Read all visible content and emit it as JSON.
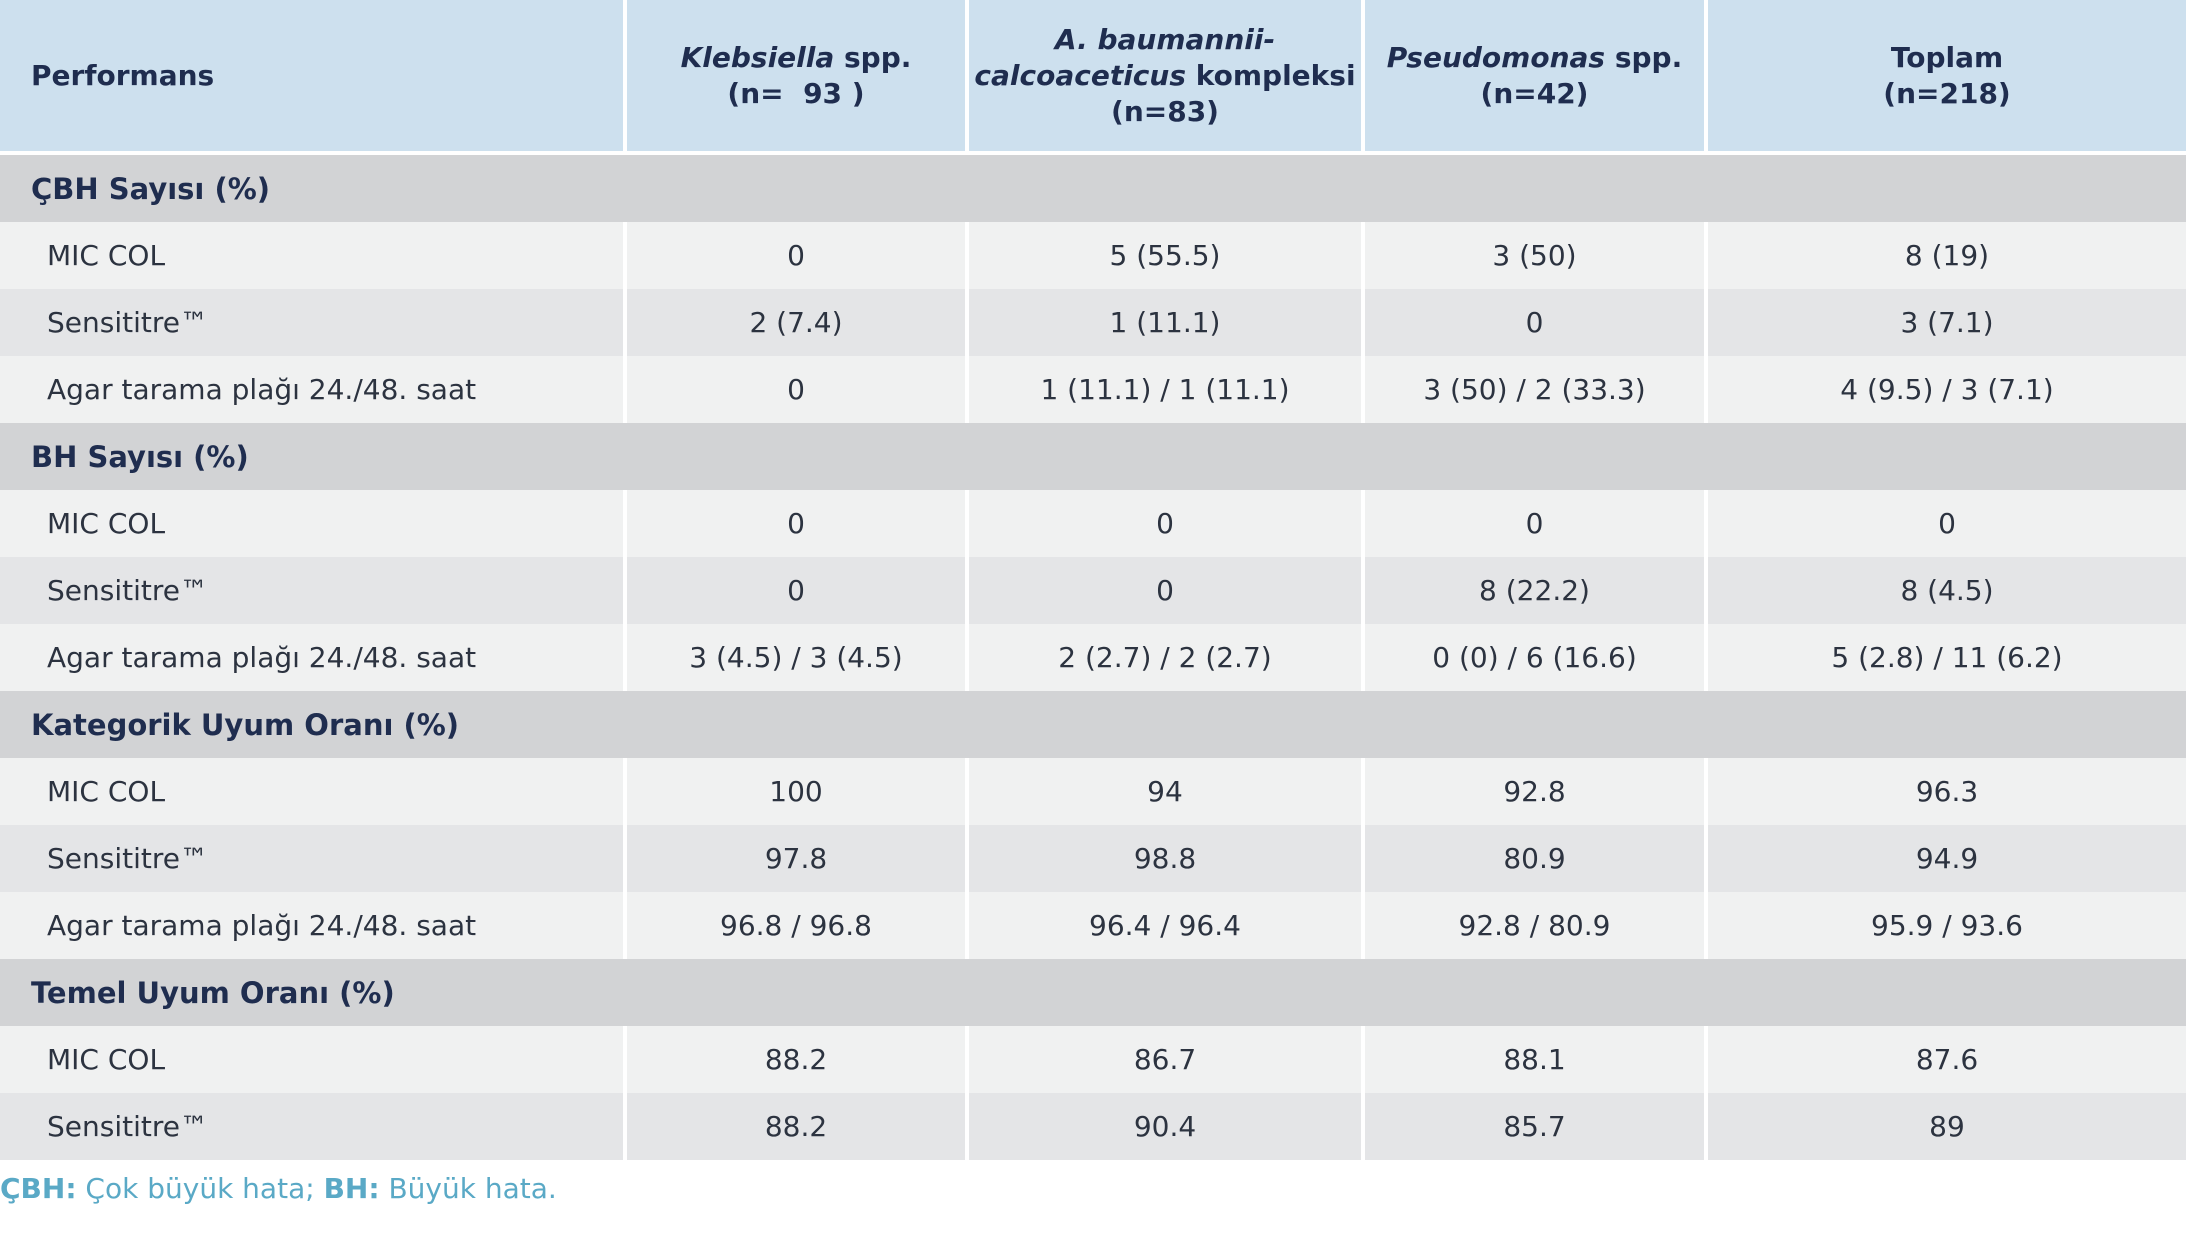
{
  "header": {
    "cells": [
      {
        "lines": [
          [
            {
              "text": "Performans"
            }
          ]
        ]
      },
      {
        "lines": [
          [
            {
              "text": "Klebsiella",
              "italic": true
            },
            {
              "text": " spp."
            }
          ],
          [
            {
              "text": "(n=  93 )"
            }
          ]
        ]
      },
      {
        "lines": [
          [
            {
              "text": "A. baumannii-",
              "italic": true
            }
          ],
          [
            {
              "text": "calcoaceticus",
              "italic": true
            },
            {
              "text": " kompleksi"
            }
          ],
          [
            {
              "text": "(n=83)"
            }
          ]
        ]
      },
      {
        "lines": [
          [
            {
              "text": "Pseudomonas",
              "italic": true
            },
            {
              "text": " spp."
            }
          ],
          [
            {
              "text": "(n=42)"
            }
          ]
        ]
      },
      {
        "lines": [
          [
            {
              "text": "Toplam"
            }
          ],
          [
            {
              "text": "(n=218)"
            }
          ]
        ]
      }
    ]
  },
  "sections": [
    {
      "title": "ÇBH Sayısı (%)",
      "rows": [
        [
          "MIC COL",
          "0",
          "5 (55.5)",
          "3 (50)",
          "8 (19)"
        ],
        [
          "Sensititre™",
          "2 (7.4)",
          "1 (11.1)",
          "0",
          "3 (7.1)"
        ],
        [
          "Agar tarama plağı 24./48. saat",
          "0",
          "1 (11.1) / 1 (11.1)",
          "3 (50) / 2 (33.3)",
          "4 (9.5) / 3 (7.1)"
        ]
      ]
    },
    {
      "title": "BH Sayısı (%)",
      "rows": [
        [
          "MIC COL",
          "0",
          "0",
          "0",
          "0"
        ],
        [
          "Sensititre™",
          "0",
          "0",
          "8 (22.2)",
          "8 (4.5)"
        ],
        [
          "Agar tarama plağı 24./48. saat",
          "3 (4.5) / 3 (4.5)",
          "2 (2.7) / 2 (2.7)",
          "0 (0) / 6 (16.6)",
          "5 (2.8) / 11 (6.2)"
        ]
      ]
    },
    {
      "title": "Kategorik Uyum Oranı (%)",
      "rows": [
        [
          "MIC COL",
          "100",
          "94",
          "92.8",
          "96.3"
        ],
        [
          "Sensititre™",
          "97.8",
          "98.8",
          "80.9",
          "94.9"
        ],
        [
          "Agar tarama plağı 24./48. saat",
          "96.8 / 96.8",
          "96.4 / 96.4",
          "92.8 / 80.9",
          "95.9 / 93.6"
        ]
      ]
    },
    {
      "title": "Temel Uyum Oranı (%)",
      "rows": [
        [
          "MIC COL",
          "88.2",
          "86.7",
          "88.1",
          "87.6"
        ],
        [
          "Sensititre™",
          "88.2",
          "90.4",
          "85.7",
          "89"
        ]
      ]
    }
  ],
  "footnote": [
    {
      "text": "ÇBH:",
      "bold": true
    },
    {
      "text": " Çok büyük hata; "
    },
    {
      "text": "BH:",
      "bold": true
    },
    {
      "text": " Büyük hata."
    }
  ]
}
